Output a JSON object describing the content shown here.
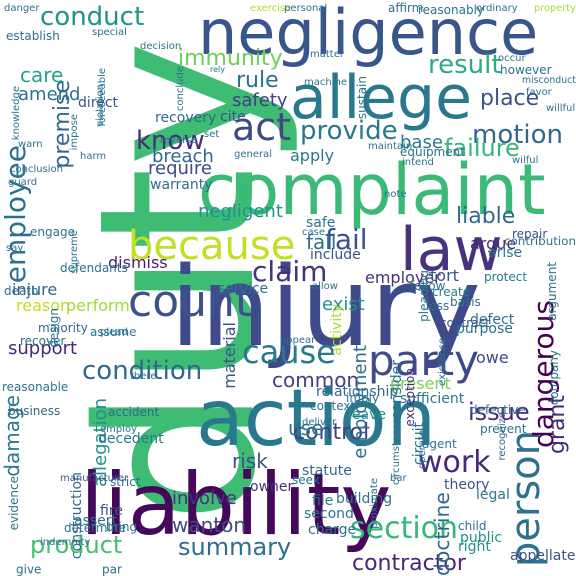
{
  "words": [
    {
      "text": "duty",
      "color": "#3fbc73",
      "vertical": true
    },
    {
      "text": "injury",
      "color": "#3e4a89",
      "vertical": false
    },
    {
      "text": "complaint",
      "color": "#3aba76",
      "vertical": false
    },
    {
      "text": "liability",
      "color": "#45085b",
      "vertical": false
    },
    {
      "text": "action",
      "color": "#2a788e",
      "vertical": false
    },
    {
      "text": "negligence",
      "color": "#39568c",
      "vertical": false
    },
    {
      "text": "allege",
      "color": "#2a788e",
      "vertical": false
    },
    {
      "text": "law",
      "color": "#46327e",
      "vertical": false
    },
    {
      "text": "because",
      "color": "#c2df23",
      "vertical": false
    },
    {
      "text": "count",
      "color": "#3b528b",
      "vertical": false
    },
    {
      "text": "party",
      "color": "#3e4a89",
      "vertical": false
    },
    {
      "text": "work",
      "color": "#482878",
      "vertical": false
    },
    {
      "text": "section",
      "color": "#35b779",
      "vertical": false
    },
    {
      "text": "product",
      "color": "#44bf70",
      "vertical": false
    },
    {
      "text": "person",
      "color": "#2c728e",
      "vertical": true
    },
    {
      "text": "employee",
      "color": "#2d708e",
      "vertical": true
    },
    {
      "text": "act",
      "color": "#3e4989",
      "vertical": false
    },
    {
      "text": "condition",
      "color": "#31688e",
      "vertical": false
    },
    {
      "text": "cause",
      "color": "#2a788e",
      "vertical": false
    },
    {
      "text": "claim",
      "color": "#46327e",
      "vertical": false
    },
    {
      "text": "conduct",
      "color": "#20928c",
      "vertical": false
    },
    {
      "text": "provide",
      "color": "#2a788e",
      "vertical": false
    },
    {
      "text": "fail",
      "color": "#3b528b",
      "vertical": false
    },
    {
      "text": "result",
      "color": "#28ae80",
      "vertical": false
    },
    {
      "text": "know",
      "color": "#472d7b",
      "vertical": false
    },
    {
      "text": "motion",
      "color": "#31688e",
      "vertical": false
    },
    {
      "text": "summary",
      "color": "#2e6e8e",
      "vertical": false
    },
    {
      "text": "control",
      "color": "#433e85",
      "vertical": false
    },
    {
      "text": "damage",
      "color": "#2a788e",
      "vertical": true
    },
    {
      "text": "issue",
      "color": "#482878",
      "vertical": false
    },
    {
      "text": "premise",
      "color": "#31688e",
      "vertical": true
    },
    {
      "text": "rule",
      "color": "#2c728e",
      "vertical": false
    },
    {
      "text": "care",
      "color": "#21a685",
      "vertical": false
    },
    {
      "text": "risk",
      "color": "#3b528b",
      "vertical": false
    },
    {
      "text": "common",
      "color": "#433e85",
      "vertical": false
    },
    {
      "text": "dangerous",
      "color": "#440154",
      "vertical": true
    },
    {
      "text": "grant",
      "color": "#472c7a",
      "vertical": true
    },
    {
      "text": "contractor",
      "color": "#482576",
      "vertical": false
    },
    {
      "text": "liable",
      "color": "#31688e",
      "vertical": false
    },
    {
      "text": "failure",
      "color": "#35b779",
      "vertical": false
    },
    {
      "text": "place",
      "color": "#3b528b",
      "vertical": false
    },
    {
      "text": "base",
      "color": "#2a788e",
      "vertical": false
    },
    {
      "text": "require",
      "color": "#3e4a89",
      "vertical": false
    },
    {
      "text": "breach",
      "color": "#31688e",
      "vertical": false
    },
    {
      "text": "negligent",
      "color": "#21918c",
      "vertical": false
    },
    {
      "text": "safety",
      "color": "#433e85",
      "vertical": false
    },
    {
      "text": "immunity",
      "color": "#6ece58",
      "vertical": false
    },
    {
      "text": "amend",
      "color": "#2c728e",
      "vertical": false
    },
    {
      "text": "apply",
      "color": "#2a788e",
      "vertical": false
    },
    {
      "text": "employer",
      "color": "#46327e",
      "vertical": false
    },
    {
      "text": "tort",
      "color": "#3b528b",
      "vertical": false
    },
    {
      "text": "argue",
      "color": "#482878",
      "vertical": false
    },
    {
      "text": "dismiss",
      "color": "#481f70",
      "vertical": false
    },
    {
      "text": "employment",
      "color": "#2e6e8e",
      "vertical": true
    },
    {
      "text": "allegation",
      "color": "#21918c",
      "vertical": true
    },
    {
      "text": "doctrine",
      "color": "#31688e",
      "vertical": true
    },
    {
      "text": "wanton",
      "color": "#3e4a89",
      "vertical": false
    },
    {
      "text": "involve",
      "color": "#46327e",
      "vertical": false
    },
    {
      "text": "support",
      "color": "#482878",
      "vertical": false
    },
    {
      "text": "present",
      "color": "#7ad151",
      "vertical": false
    },
    {
      "text": "injure",
      "color": "#31688e",
      "vertical": false
    },
    {
      "text": "use",
      "color": "#2a788e",
      "vertical": false
    },
    {
      "text": "reason",
      "color": "#bddf26",
      "vertical": false
    },
    {
      "text": "perform",
      "color": "#a2da37",
      "vertical": false
    },
    {
      "text": "direct",
      "color": "#3b528b",
      "vertical": false
    },
    {
      "text": "warranty",
      "color": "#2e6e8e",
      "vertical": false
    },
    {
      "text": "cite",
      "color": "#3b528b",
      "vertical": false
    },
    {
      "text": "recovery",
      "color": "#31688e",
      "vertical": false
    },
    {
      "text": "exist",
      "color": "#21918c",
      "vertical": false
    },
    {
      "text": "material",
      "color": "#3b528b",
      "vertical": true
    },
    {
      "text": "owe",
      "color": "#3e4a89",
      "vertical": false
    },
    {
      "text": "defective",
      "color": "#31688e",
      "vertical": false
    },
    {
      "text": "purpose",
      "color": "#2c728e",
      "vertical": false
    },
    {
      "text": "protect",
      "color": "#2a788e",
      "vertical": false
    },
    {
      "text": "fall",
      "color": "#2c728e",
      "vertical": false
    },
    {
      "text": "include",
      "color": "#3b528b",
      "vertical": false
    },
    {
      "text": "defect",
      "color": "#2e6e8e",
      "vertical": false
    },
    {
      "text": "relationship",
      "color": "#31688e",
      "vertical": false
    },
    {
      "text": "statute",
      "color": "#31688e",
      "vertical": false
    },
    {
      "text": "leave",
      "color": "#21918c",
      "vertical": false
    },
    {
      "text": "theory",
      "color": "#3b528b",
      "vertical": false
    },
    {
      "text": "public",
      "color": "#21918c",
      "vertical": false
    },
    {
      "text": "appellate",
      "color": "#3b528b",
      "vertical": false
    },
    {
      "text": "right",
      "color": "#21918c",
      "vertical": false
    },
    {
      "text": "construction",
      "color": "#31688e",
      "vertical": true
    },
    {
      "text": "decedent",
      "color": "#2a788e",
      "vertical": false
    },
    {
      "text": "fire",
      "color": "#3b528b",
      "vertical": false
    },
    {
      "text": "bring",
      "color": "#2a788e",
      "vertical": false
    },
    {
      "text": "charge",
      "color": "#2c728e",
      "vertical": false
    },
    {
      "text": "second",
      "color": "#2c728e",
      "vertical": false
    },
    {
      "text": "building",
      "color": "#2a788e",
      "vertical": false
    },
    {
      "text": "evidence",
      "color": "#2a788e",
      "vertical": true
    },
    {
      "text": "business",
      "color": "#31688e",
      "vertical": false
    },
    {
      "text": "accident",
      "color": "#31688e",
      "vertical": false
    },
    {
      "text": "strict",
      "color": "#2e6e8e",
      "vertical": false
    },
    {
      "text": "owner",
      "color": "#46327e",
      "vertical": false
    },
    {
      "text": "seek",
      "color": "#2a788e",
      "vertical": false
    },
    {
      "text": "file",
      "color": "#2a788e",
      "vertical": false
    },
    {
      "text": "legal",
      "color": "#2a788e",
      "vertical": false
    },
    {
      "text": "child",
      "color": "#2c728e",
      "vertical": false
    },
    {
      "text": "company",
      "color": "#2c728e",
      "vertical": true
    },
    {
      "text": "sufficient",
      "color": "#2a788e",
      "vertical": false
    },
    {
      "text": "prevent",
      "color": "#2c728e",
      "vertical": false
    },
    {
      "text": "agent",
      "color": "#2a788e",
      "vertical": false
    },
    {
      "text": "consider",
      "color": "#2c728e",
      "vertical": true
    },
    {
      "text": "imply",
      "color": "#2a788e",
      "vertical": false
    },
    {
      "text": "circuit",
      "color": "#2c728e",
      "vertical": true
    },
    {
      "text": "context",
      "color": "#2c728e",
      "vertical": false
    },
    {
      "text": "deliver",
      "color": "#31688e",
      "vertical": false
    },
    {
      "text": "activity",
      "color": "#aadc32",
      "vertical": true
    },
    {
      "text": "recognize",
      "color": "#31688e",
      "vertical": true
    },
    {
      "text": "exception",
      "color": "#46327e",
      "vertical": true
    },
    {
      "text": "pleading",
      "color": "#2a788e",
      "vertical": true
    },
    {
      "text": "follow",
      "color": "#2c728e",
      "vertical": false
    },
    {
      "text": "loss",
      "color": "#2e6e8e",
      "vertical": false
    },
    {
      "text": "create",
      "color": "#2a788e",
      "vertical": false
    },
    {
      "text": "contract",
      "color": "#3b528b",
      "vertical": false
    },
    {
      "text": "repair",
      "color": "#3b528b",
      "vertical": false
    },
    {
      "text": "arise",
      "color": "#2a788e",
      "vertical": false
    },
    {
      "text": "safe",
      "color": "#2c728e",
      "vertical": false
    },
    {
      "text": "service",
      "color": "#2c728e",
      "vertical": false
    },
    {
      "text": "allow",
      "color": "#2c728e",
      "vertical": false
    },
    {
      "text": "assume",
      "color": "#2a788e",
      "vertical": false
    },
    {
      "text": "majority",
      "color": "#31688e",
      "vertical": false
    },
    {
      "text": "recover",
      "color": "#2c728e",
      "vertical": false
    },
    {
      "text": "design",
      "color": "#2c728e",
      "vertical": true
    },
    {
      "text": "defendants'",
      "color": "#2c728e",
      "vertical": false
    },
    {
      "text": "engage",
      "color": "#2c728e",
      "vertical": false
    },
    {
      "text": "death",
      "color": "#2c728e",
      "vertical": false
    },
    {
      "text": "employ",
      "color": "#2c728e",
      "vertical": false
    },
    {
      "text": "reasonable",
      "color": "#2c728e",
      "vertical": false
    },
    {
      "text": "give",
      "color": "#2c728e",
      "vertical": false
    },
    {
      "text": "par",
      "color": "#2c728e",
      "vertical": false
    },
    {
      "text": "indemnity",
      "color": "#2c728e",
      "vertical": false
    },
    {
      "text": "assert",
      "color": "#2c728e",
      "vertical": false
    },
    {
      "text": "manufacturer",
      "color": "#3b528b",
      "vertical": false
    },
    {
      "text": "determine",
      "color": "#2c728e",
      "vertical": false
    },
    {
      "text": "danger",
      "color": "#2c728e",
      "vertical": false
    },
    {
      "text": "establish",
      "color": "#2c728e",
      "vertical": false
    },
    {
      "text": "special",
      "color": "#2c728e",
      "vertical": false
    },
    {
      "text": "decision",
      "color": "#2c728e",
      "vertical": false
    },
    {
      "text": "exercise",
      "color": "#b5de2b",
      "vertical": false
    },
    {
      "text": "personal",
      "color": "#2c728e",
      "vertical": false
    },
    {
      "text": "affirm",
      "color": "#2c728e",
      "vertical": false
    },
    {
      "text": "reasonably",
      "color": "#2c728e",
      "vertical": false
    },
    {
      "text": "ordinary",
      "color": "#2c728e",
      "vertical": false
    },
    {
      "text": "property",
      "color": "#aadc32",
      "vertical": false
    },
    {
      "text": "matter",
      "color": "#2c728e",
      "vertical": false
    },
    {
      "text": "occur",
      "color": "#2c728e",
      "vertical": false
    },
    {
      "text": "however",
      "color": "#2c728e",
      "vertical": false
    },
    {
      "text": "misconduct",
      "color": "#2c728e",
      "vertical": false
    },
    {
      "text": "favor",
      "color": "#2c728e",
      "vertical": false
    },
    {
      "text": "willful",
      "color": "#2c728e",
      "vertical": false
    },
    {
      "text": "wilful",
      "color": "#2c728e",
      "vertical": false
    },
    {
      "text": "intend",
      "color": "#2c728e",
      "vertical": false
    },
    {
      "text": "equipment",
      "color": "#2c728e",
      "vertical": false
    },
    {
      "text": "maintain",
      "color": "#2c728e",
      "vertical": false
    },
    {
      "text": "impose",
      "color": "#2c728e",
      "vertical": true
    },
    {
      "text": "harm",
      "color": "#2c728e",
      "vertical": false
    },
    {
      "text": "set",
      "color": "#2c728e",
      "vertical": false
    },
    {
      "text": "reverse",
      "color": "#2c728e",
      "vertical": false
    },
    {
      "text": "general",
      "color": "#2c728e",
      "vertical": false
    },
    {
      "text": "note",
      "color": "#2c728e",
      "vertical": false
    },
    {
      "text": "machine",
      "color": "#2c728e",
      "vertical": false
    },
    {
      "text": "sustain",
      "color": "#2c728e",
      "vertical": true
    },
    {
      "text": "foreseeable",
      "color": "#2c728e",
      "vertical": true
    },
    {
      "text": "violation",
      "color": "#2c728e",
      "vertical": true
    },
    {
      "text": "conclude",
      "color": "#2c728e",
      "vertical": true
    },
    {
      "text": "rely",
      "color": "#2c728e",
      "vertical": false
    },
    {
      "text": "knowledge",
      "color": "#2c728e",
      "vertical": true
    },
    {
      "text": "say",
      "color": "#2c728e",
      "vertical": false
    },
    {
      "text": "warn",
      "color": "#2c728e",
      "vertical": false
    },
    {
      "text": "conclusion",
      "color": "#2c728e",
      "vertical": false
    },
    {
      "text": "guard",
      "color": "#2c728e",
      "vertical": false
    },
    {
      "text": "supreme",
      "color": "#2c728e",
      "vertical": true
    },
    {
      "text": "plead",
      "color": "#2c728e",
      "vertical": false
    },
    {
      "text": "there",
      "color": "#2c728e",
      "vertical": false
    },
    {
      "text": "proximate",
      "color": "#2c728e",
      "vertical": true
    },
    {
      "text": "bar",
      "color": "#2c728e",
      "vertical": false
    },
    {
      "text": "operate",
      "color": "#2c728e",
      "vertical": true
    },
    {
      "text": "circumstance",
      "color": "#2c728e",
      "vertical": true
    },
    {
      "text": "argument",
      "color": "#2c728e",
      "vertical": true
    },
    {
      "text": "contribution",
      "color": "#2c728e",
      "vertical": false
    },
    {
      "text": "basis",
      "color": "#2c728e",
      "vertical": false
    },
    {
      "text": "existence",
      "color": "#2c728e",
      "vertical": true
    },
    {
      "text": "appear",
      "color": "#2c728e",
      "vertical": false
    },
    {
      "text": "case",
      "color": "#2c728e",
      "vertical": false
    }
  ]
}
